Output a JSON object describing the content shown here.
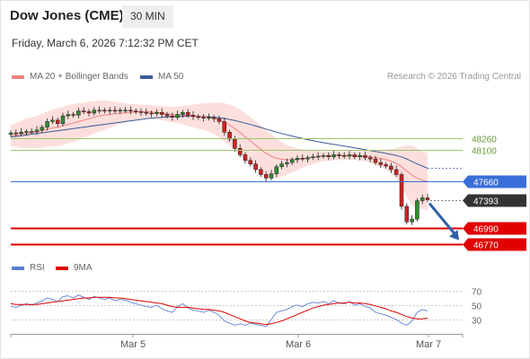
{
  "header": {
    "title": "Dow Jones (CME)",
    "timeframe": "30 MIN",
    "datetime": "Friday, March 6, 2026 7:12:32 PM CET",
    "credit": "Research © 2026 Trading Central"
  },
  "legend": {
    "ma20": {
      "label": "MA 20 + Bollinger Bands",
      "color": "#f08080"
    },
    "ma50": {
      "label": "MA 50",
      "color": "#3a5a9a"
    },
    "rsi": {
      "label": "RSI",
      "color": "#5b7fd8"
    },
    "ma9": {
      "label": "9MA",
      "color": "#e00000"
    }
  },
  "chart_data": [
    {
      "type": "candlestick",
      "x_tick_labels": [
        "Mar 5",
        "Mar 6",
        "Mar 7"
      ],
      "levels": [
        {
          "value": 48260,
          "label": "48260",
          "style": "support-resistance",
          "color": "#9dc56a"
        },
        {
          "value": 48100,
          "label": "48100",
          "style": "support-resistance",
          "color": "#9dc56a"
        },
        {
          "value": 47660,
          "label": "47660",
          "style": "pivot",
          "color": "#3a6fd8"
        },
        {
          "value": 47393,
          "label": "47393",
          "style": "last-price",
          "color": "#333333"
        },
        {
          "value": 46990,
          "label": "46990",
          "style": "target",
          "color": "#e00000"
        },
        {
          "value": 46770,
          "label": "46770",
          "style": "target",
          "color": "#e00000"
        }
      ],
      "last_price": 47393,
      "y_range": [
        46600,
        48950
      ],
      "closes": [
        48340,
        48330,
        48350,
        48360,
        48360,
        48380,
        48420,
        48500,
        48520,
        48470,
        48580,
        48600,
        48590,
        48650,
        48640,
        48620,
        48660,
        48660,
        48650,
        48660,
        48650,
        48660,
        48660,
        48650,
        48640,
        48630,
        48620,
        48610,
        48630,
        48600,
        48580,
        48560,
        48600,
        48630,
        48590,
        48570,
        48560,
        48550,
        48560,
        48540,
        48500,
        48350,
        48250,
        48120,
        48030,
        47950,
        47900,
        47820,
        47750,
        47700,
        47760,
        47860,
        47900,
        47920,
        47960,
        47980,
        47970,
        47990,
        48000,
        48010,
        48020,
        48000,
        48030,
        48020,
        48010,
        48030,
        48000,
        48020,
        47990,
        47970,
        47920,
        47890,
        47870,
        47820,
        47750,
        47300,
        47080,
        47120,
        47380,
        47420,
        47393
      ],
      "ma20": [
        48300,
        48310,
        48320,
        48330,
        48340,
        48350,
        48370,
        48390,
        48410,
        48420,
        48440,
        48460,
        48480,
        48500,
        48520,
        48540,
        48560,
        48580,
        48590,
        48600,
        48610,
        48620,
        48625,
        48630,
        48635,
        48640,
        48640,
        48635,
        48630,
        48620,
        48610,
        48600,
        48595,
        48590,
        48585,
        48580,
        48575,
        48570,
        48560,
        48545,
        48525,
        48490,
        48450,
        48400,
        48345,
        48285,
        48225,
        48165,
        48105,
        48050,
        48010,
        47980,
        47965,
        47960,
        47960,
        47965,
        47975,
        47985,
        47995,
        48005,
        48010,
        48012,
        48015,
        48017,
        48018,
        48020,
        48018,
        48015,
        48010,
        48002,
        47990,
        47975,
        47960,
        47940,
        47910,
        47860,
        47800,
        47740,
        47700,
        47670,
        47650
      ],
      "bb_upper": [
        48450,
        48480,
        48510,
        48540,
        48560,
        48580,
        48610,
        48640,
        48670,
        48690,
        48710,
        48730,
        48750,
        48760,
        48770,
        48780,
        48790,
        48800,
        48800,
        48790,
        48780,
        48770,
        48760,
        48750,
        48745,
        48740,
        48735,
        48730,
        48725,
        48720,
        48715,
        48710,
        48710,
        48720,
        48730,
        48740,
        48750,
        48760,
        48765,
        48770,
        48770,
        48760,
        48740,
        48710,
        48670,
        48620,
        48560,
        48500,
        48440,
        48380,
        48320,
        48260,
        48210,
        48170,
        48140,
        48120,
        48105,
        48095,
        48090,
        48085,
        48080,
        48080,
        48080,
        48080,
        48080,
        48080,
        48080,
        48080,
        48085,
        48090,
        48095,
        48100,
        48100,
        48110,
        48120,
        48150,
        48160,
        48160,
        48120,
        48080,
        48050
      ],
      "bb_lower": [
        48150,
        48140,
        48130,
        48120,
        48120,
        48120,
        48130,
        48140,
        48150,
        48150,
        48170,
        48190,
        48210,
        48240,
        48270,
        48300,
        48330,
        48360,
        48380,
        48410,
        48440,
        48470,
        48490,
        48510,
        48525,
        48540,
        48545,
        48540,
        48535,
        48520,
        48505,
        48490,
        48480,
        48460,
        48440,
        48420,
        48400,
        48380,
        48355,
        48320,
        48280,
        48220,
        48160,
        48090,
        48020,
        47950,
        47890,
        47830,
        47770,
        47720,
        47700,
        47700,
        47720,
        47750,
        47780,
        47810,
        47845,
        47875,
        47900,
        47925,
        47940,
        47944,
        47950,
        47954,
        47956,
        47960,
        47956,
        47950,
        47935,
        47914,
        47885,
        47850,
        47820,
        47770,
        47700,
        47570,
        47440,
        47320,
        47280,
        47260,
        47250
      ],
      "ma50": [
        48280,
        48290,
        48300,
        48310,
        48320,
        48330,
        48340,
        48350,
        48360,
        48370,
        48380,
        48390,
        48400,
        48410,
        48420,
        48430,
        48440,
        48450,
        48460,
        48470,
        48480,
        48490,
        48500,
        48510,
        48520,
        48530,
        48540,
        48548,
        48555,
        48560,
        48565,
        48570,
        48572,
        48574,
        48575,
        48575,
        48574,
        48572,
        48568,
        48562,
        48554,
        48543,
        48530,
        48514,
        48497,
        48478,
        48458,
        48437,
        48416,
        48394,
        48372,
        48350,
        48330,
        48312,
        48294,
        48277,
        48260,
        48244,
        48228,
        48214,
        48200,
        48188,
        48176,
        48164,
        48152,
        48140,
        48128,
        48115,
        48102,
        48089,
        48076,
        48063,
        48050,
        48036,
        48020,
        48000,
        47970,
        47935,
        47900,
        47870,
        47840
      ]
    },
    {
      "type": "line",
      "name": "RSI panel",
      "y_tick_labels": [
        "70",
        "50",
        "30"
      ],
      "levels": [
        70,
        50,
        30
      ],
      "y_range": [
        15,
        85
      ],
      "x_tick_labels": [
        "Mar 5",
        "Mar 6",
        "Mar 7"
      ],
      "series": [
        {
          "name": "RSI",
          "values": [
            48,
            47,
            50,
            52,
            50,
            53,
            56,
            60,
            58,
            55,
            62,
            63,
            60,
            64,
            61,
            58,
            62,
            60,
            58,
            60,
            56,
            58,
            57,
            54,
            52,
            50,
            48,
            47,
            50,
            45,
            42,
            40,
            48,
            52,
            46,
            43,
            42,
            40,
            43,
            40,
            36,
            28,
            25,
            22,
            24,
            22,
            25,
            23,
            22,
            20,
            30,
            40,
            42,
            44,
            48,
            50,
            48,
            52,
            54,
            53,
            55,
            52,
            56,
            53,
            52,
            55,
            50,
            52,
            48,
            46,
            40,
            38,
            36,
            33,
            30,
            25,
            22,
            28,
            40,
            44,
            42
          ]
        },
        {
          "name": "9MA",
          "values": [
            52,
            51,
            51,
            51,
            51,
            51,
            52,
            53,
            54,
            55,
            56,
            57,
            58,
            59,
            60,
            60,
            61,
            61,
            61,
            61,
            60,
            60,
            59,
            58,
            57,
            56,
            55,
            54,
            53,
            52,
            50,
            48,
            47,
            47,
            47,
            46,
            45,
            44,
            44,
            43,
            42,
            40,
            37,
            34,
            31,
            28,
            26,
            25,
            24,
            23,
            24,
            26,
            28,
            31,
            34,
            37,
            40,
            43,
            46,
            48,
            50,
            51,
            52,
            53,
            53,
            54,
            53,
            53,
            52,
            51,
            49,
            47,
            45,
            42,
            40,
            37,
            34,
            32,
            31,
            31,
            32
          ]
        }
      ]
    }
  ]
}
